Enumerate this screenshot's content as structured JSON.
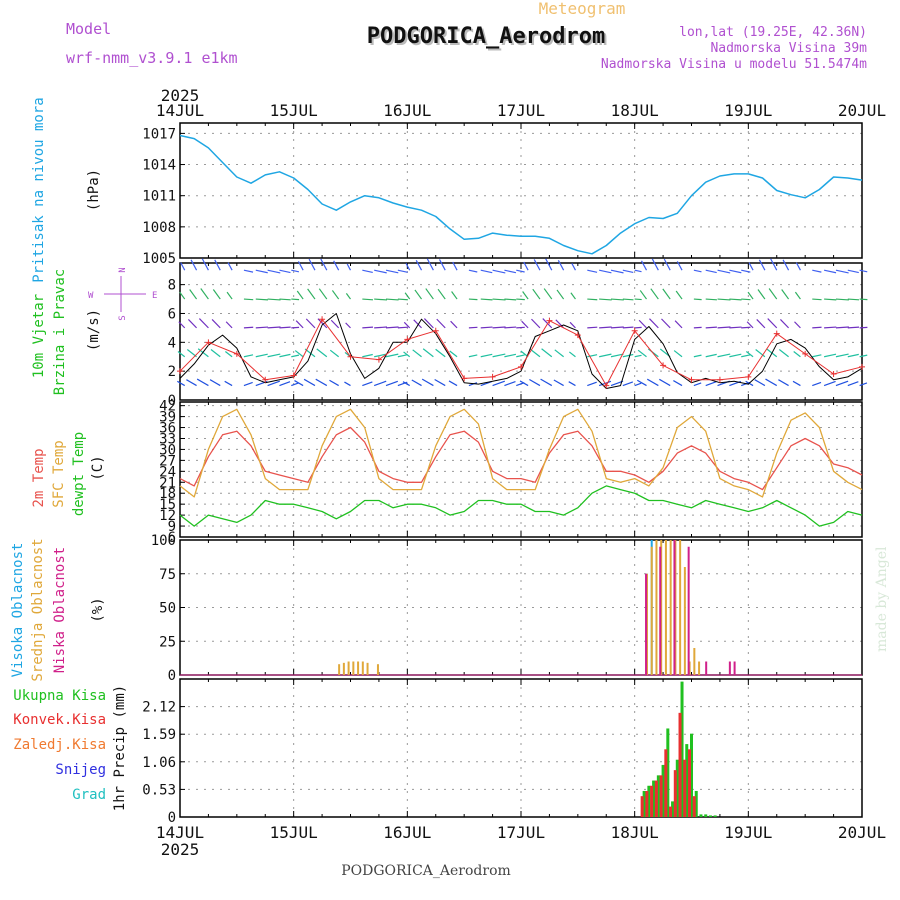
{
  "header": {
    "model_label": "Model",
    "model_value": "wrf-nmm_v3.9.1 e1km",
    "kind": "Meteogram",
    "station": "PODGORICA_Aerodrom",
    "lonlat": "lon,lat (19.25E, 42.36N)",
    "elevation": "Nadmorska Visina 39m",
    "model_elevation": "Nadmorska Visina u modelu 51.5474m",
    "year": "2025",
    "footer_station": "PODGORICA_Aerodrom",
    "watermark": "made by Angel"
  },
  "colors": {
    "pressure": "#1fa6e3",
    "wind_speed": "#000000",
    "gust": "#e83030",
    "temp_2m": "#e8534d",
    "temp_sfc": "#e0a83a",
    "dewpoint": "#20c020",
    "cloud_high": "#1fa6e3",
    "cloud_mid": "#e0a83a",
    "cloud_low": "#d0208a",
    "precip_total": "#20c020",
    "precip_conv": "#e83030",
    "precip_frozen": "#f07a30",
    "snow": "#3030e0",
    "hail": "#20c0c0",
    "grid": "#9a9a9a",
    "axis_label_purple": "#b050d0"
  },
  "chart_data": [
    {
      "type": "line",
      "panel": "pressure",
      "ylabel_colored": "Pritisak na nivou mora",
      "unit": "(hPa)",
      "xlim_hours": [
        0,
        144
      ],
      "ylim": [
        1005,
        1018
      ],
      "yticks": [
        1005,
        1008,
        1011,
        1014,
        1017
      ],
      "xticks": [
        "14JUL",
        "15JUL",
        "16JUL",
        "17JUL",
        "18JUL",
        "19JUL",
        "20JUL"
      ],
      "series": [
        {
          "key": "pressure",
          "x": [
            0,
            3,
            6,
            9,
            12,
            15,
            18,
            21,
            24,
            27,
            30,
            33,
            36,
            39,
            42,
            45,
            48,
            51,
            54,
            57,
            60,
            63,
            66,
            69,
            72,
            75,
            78,
            81,
            84,
            87,
            90,
            93,
            96,
            99,
            102,
            105,
            108,
            111,
            114,
            117,
            120,
            123,
            126,
            129,
            132,
            135,
            138,
            141,
            144
          ],
          "values": [
            1016.8,
            1016.5,
            1015.6,
            1014.2,
            1012.8,
            1012.2,
            1013.0,
            1013.3,
            1012.7,
            1011.6,
            1010.2,
            1009.6,
            1010.4,
            1011.0,
            1010.8,
            1010.3,
            1009.9,
            1009.6,
            1009.0,
            1007.8,
            1006.8,
            1006.9,
            1007.4,
            1007.2,
            1007.1,
            1007.1,
            1006.9,
            1006.2,
            1005.7,
            1005.4,
            1006.2,
            1007.4,
            1008.3,
            1008.9,
            1008.8,
            1009.3,
            1011.0,
            1012.3,
            1012.9,
            1013.1,
            1013.1,
            1012.7,
            1011.5,
            1011.1,
            1010.8,
            1011.6,
            1012.8,
            1012.7,
            1012.5
          ]
        }
      ]
    },
    {
      "type": "line",
      "panel": "wind",
      "ylabel_colored": [
        "10m Vjetar",
        "Brzina i Pravac"
      ],
      "unit": "(m/s)",
      "compass": {
        "north": "N",
        "south": "S",
        "west": "W",
        "east": "E"
      },
      "ylim": [
        0,
        9.5
      ],
      "yticks": [
        0,
        2,
        4,
        6,
        8
      ],
      "series": [
        {
          "key": "speed",
          "x": [
            0,
            3,
            6,
            9,
            12,
            15,
            18,
            21,
            24,
            27,
            30,
            33,
            36,
            39,
            42,
            45,
            48,
            51,
            54,
            57,
            60,
            63,
            66,
            69,
            72,
            75,
            78,
            81,
            84,
            87,
            90,
            93,
            96,
            99,
            102,
            105,
            108,
            111,
            114,
            117,
            120,
            123,
            126,
            129,
            132,
            135,
            138,
            141,
            144
          ],
          "values": [
            1.5,
            2.5,
            3.8,
            4.5,
            3.6,
            1.6,
            1.2,
            1.4,
            1.6,
            2.7,
            5.2,
            6.0,
            3.2,
            1.5,
            2.2,
            4.0,
            4.0,
            5.6,
            4.6,
            3.0,
            1.2,
            1.1,
            1.3,
            1.5,
            2.0,
            4.4,
            4.8,
            5.2,
            4.8,
            1.8,
            0.8,
            1.0,
            4.2,
            5.1,
            3.9,
            1.9,
            1.2,
            1.5,
            1.2,
            1.3,
            1.1,
            2.0,
            3.9,
            4.2,
            3.6,
            2.3,
            1.4,
            1.6,
            2.2
          ]
        },
        {
          "key": "gust",
          "x": [
            0,
            6,
            12,
            18,
            24,
            30,
            36,
            42,
            48,
            54,
            60,
            66,
            72,
            78,
            84,
            90,
            96,
            102,
            108,
            114,
            120,
            126,
            132,
            138,
            144
          ],
          "values": [
            2.0,
            4.0,
            3.2,
            1.4,
            1.7,
            5.6,
            3.0,
            2.8,
            4.2,
            4.8,
            1.5,
            1.6,
            2.3,
            5.5,
            4.5,
            1.0,
            4.8,
            2.4,
            1.4,
            1.4,
            1.6,
            4.6,
            3.2,
            1.8,
            2.3
          ]
        }
      ]
    },
    {
      "type": "line",
      "panel": "temperature",
      "ylabel_colored": [
        "2m Temp",
        "SFC Temp",
        "dewpt Temp"
      ],
      "unit": "(C)",
      "ylim": [
        6,
        43
      ],
      "yticks": [
        6,
        9,
        12,
        15,
        18,
        21,
        24,
        27,
        30,
        33,
        36,
        39,
        42
      ],
      "series": [
        {
          "key": "t2m",
          "x": [
            0,
            3,
            6,
            9,
            12,
            15,
            18,
            21,
            24,
            27,
            30,
            33,
            36,
            39,
            42,
            45,
            48,
            51,
            54,
            57,
            60,
            63,
            66,
            69,
            72,
            75,
            78,
            81,
            84,
            87,
            90,
            93,
            96,
            99,
            102,
            105,
            108,
            111,
            114,
            117,
            120,
            123,
            126,
            129,
            132,
            135,
            138,
            141,
            144
          ],
          "values": [
            22,
            20,
            28,
            34,
            35,
            31,
            24,
            23,
            22,
            21,
            28,
            34,
            36,
            32,
            24,
            22,
            21,
            21,
            28,
            34,
            35,
            32,
            24,
            22,
            22,
            21,
            29,
            34,
            35,
            31,
            24,
            24,
            23,
            21,
            24,
            29,
            31,
            29,
            24,
            22,
            21,
            19,
            25,
            31,
            33,
            31,
            26,
            25,
            23
          ]
        },
        {
          "key": "tsfc",
          "x": [
            0,
            3,
            6,
            9,
            12,
            15,
            18,
            21,
            24,
            27,
            30,
            33,
            36,
            39,
            42,
            45,
            48,
            51,
            54,
            57,
            60,
            63,
            66,
            69,
            72,
            75,
            78,
            81,
            84,
            87,
            90,
            93,
            96,
            99,
            102,
            105,
            108,
            111,
            114,
            117,
            120,
            123,
            126,
            129,
            132,
            135,
            138,
            141,
            144
          ],
          "values": [
            20,
            17,
            30,
            39,
            41,
            34,
            22,
            19,
            19,
            19,
            31,
            39,
            41,
            36,
            22,
            19,
            19,
            19,
            31,
            39,
            41,
            37,
            22,
            19,
            19,
            19,
            30,
            39,
            41,
            35,
            22,
            21,
            22,
            20,
            25,
            36,
            39,
            35,
            22,
            20,
            19,
            17,
            29,
            38,
            40,
            36,
            24,
            21,
            19
          ]
        },
        {
          "key": "dewpt",
          "x": [
            0,
            3,
            6,
            9,
            12,
            15,
            18,
            21,
            24,
            27,
            30,
            33,
            36,
            39,
            42,
            45,
            48,
            51,
            54,
            57,
            60,
            63,
            66,
            69,
            72,
            75,
            78,
            81,
            84,
            87,
            90,
            93,
            96,
            99,
            102,
            105,
            108,
            111,
            114,
            117,
            120,
            123,
            126,
            129,
            132,
            135,
            138,
            141,
            144
          ],
          "values": [
            12,
            9,
            12,
            11,
            10,
            12,
            16,
            15,
            15,
            14,
            13,
            11,
            13,
            16,
            16,
            14,
            15,
            15,
            14,
            12,
            13,
            16,
            16,
            15,
            15,
            13,
            13,
            12,
            14,
            18,
            20,
            19,
            18,
            16,
            16,
            15,
            14,
            16,
            15,
            14,
            13,
            14,
            16,
            14,
            12,
            9,
            10,
            13,
            12
          ]
        }
      ]
    },
    {
      "type": "bar",
      "panel": "clouds",
      "ylabel_colored": [
        "Visoka Oblacnost",
        "Srednja Oblacnost",
        "Niska Oblacnost"
      ],
      "unit": "(%)",
      "ylim": [
        0,
        100
      ],
      "yticks": [
        0,
        25,
        50,
        75,
        100
      ],
      "series": [
        {
          "key": "high",
          "x": [
            98.6,
            99.6
          ],
          "values": [
            75,
            100
          ]
        },
        {
          "key": "mid",
          "x": [
            33.6,
            34.6,
            35.6,
            36.6,
            37.6,
            38.6,
            39.6,
            41.8,
            98.6,
            99.6,
            100.6,
            101.6,
            102.6,
            103.6,
            104.6,
            105.6,
            106.6,
            107.6,
            108.6,
            109.6
          ],
          "values": [
            8,
            9,
            10,
            10,
            10,
            10,
            9,
            8,
            75,
            95,
            100,
            100,
            100,
            100,
            100,
            100,
            80,
            10,
            20,
            10
          ]
        },
        {
          "key": "low",
          "x": [
            98.4,
            101.4,
            104.4,
            107.4,
            111.1,
            116.1,
            117.1
          ],
          "values": [
            75,
            95,
            100,
            95,
            10,
            10,
            10
          ]
        }
      ]
    },
    {
      "type": "bar",
      "panel": "precipitation",
      "ylabel_colored": [
        "Ukupna Kisa",
        "Konvek.Kisa",
        "Zaledj.Kisa",
        "Snijeg",
        "Grad"
      ],
      "ylabel": "1hr Precip (mm)",
      "ylim": [
        0,
        2.65
      ],
      "yticks": [
        0,
        0.53,
        1.06,
        1.59,
        2.12
      ],
      "ytick_labels": [
        "0",
        "0.53",
        "1.06",
        "1.59",
        "2.12"
      ],
      "series": [
        {
          "key": "total",
          "x": [
            98,
            99,
            100,
            101,
            102,
            103,
            104,
            105,
            106,
            107,
            108,
            109,
            110,
            111,
            112,
            113
          ],
          "values": [
            0.5,
            0.6,
            0.7,
            0.8,
            1.0,
            1.7,
            0.3,
            1.1,
            2.6,
            1.4,
            1.6,
            0.5,
            0.05,
            0.05,
            0.03,
            0.03
          ]
        },
        {
          "key": "conv",
          "x": [
            98,
            99,
            100,
            101,
            102,
            103,
            104,
            105,
            106,
            107,
            108,
            109
          ],
          "values": [
            0.4,
            0.5,
            0.6,
            0.7,
            0.8,
            1.3,
            0.2,
            0.9,
            2.0,
            1.1,
            1.3,
            0.4
          ]
        }
      ]
    }
  ]
}
